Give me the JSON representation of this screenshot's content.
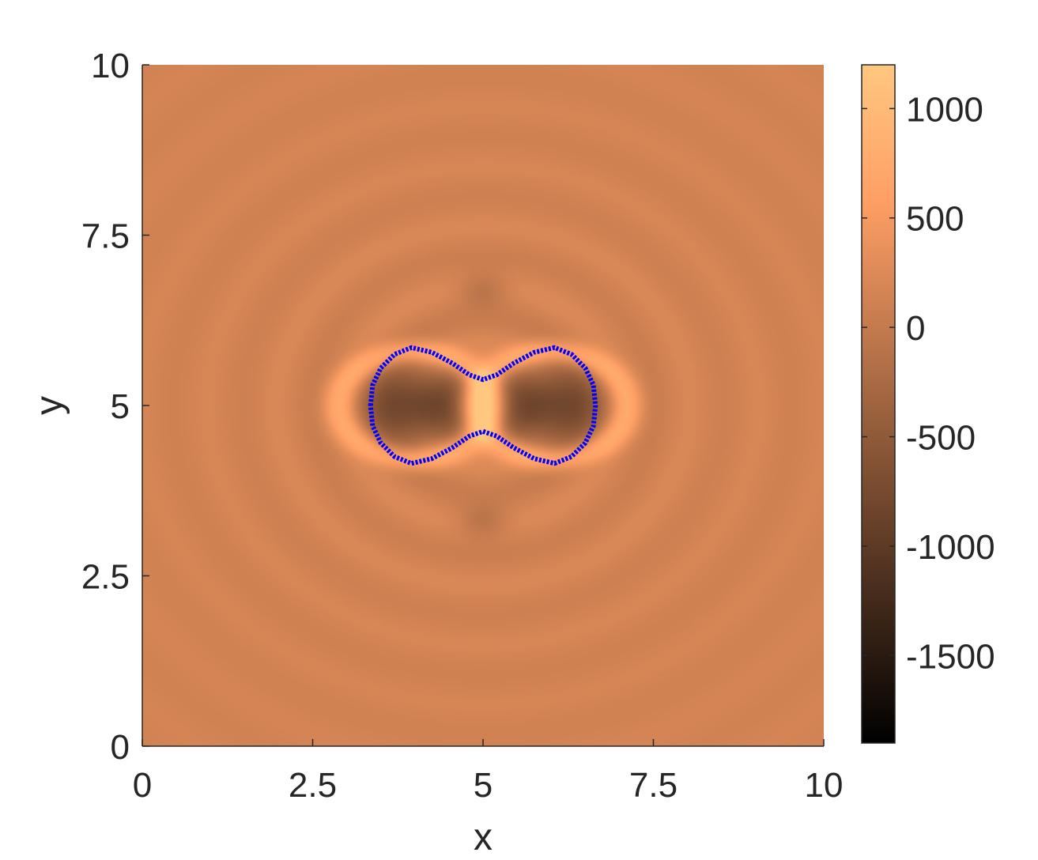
{
  "chart_data": {
    "type": "heatmap",
    "title": "",
    "xlabel": "x",
    "ylabel": "y",
    "xlim": [
      0,
      10
    ],
    "ylim": [
      0,
      10
    ],
    "x_ticks": [
      0,
      2.5,
      5,
      7.5,
      10
    ],
    "y_ticks": [
      0,
      2.5,
      5,
      7.5,
      10
    ],
    "x_tick_labels": [
      "0",
      "2.5",
      "5",
      "7.5",
      "10"
    ],
    "y_tick_labels": [
      "0",
      "2.5",
      "5",
      "7.5",
      "10"
    ],
    "grid": false,
    "colormap": "copper",
    "colorbar": {
      "range": [
        -1900,
        1200
      ],
      "ticks": [
        1000,
        500,
        0,
        -500,
        -1000,
        -1500
      ],
      "tick_labels": [
        "1000",
        "500",
        "0",
        "-500",
        "-1000",
        "-1500"
      ],
      "placement": "right"
    },
    "field": {
      "description_free_params": {
        "centers": [
          [
            4,
            5
          ],
          [
            6,
            5
          ]
        ],
        "background_value": 150
      }
    },
    "contour": {
      "color": "#0000ff",
      "points": [
        [
          3.35,
          5.0
        ],
        [
          3.38,
          5.3
        ],
        [
          3.5,
          5.55
        ],
        [
          3.7,
          5.75
        ],
        [
          3.95,
          5.85
        ],
        [
          4.25,
          5.78
        ],
        [
          4.55,
          5.62
        ],
        [
          4.8,
          5.45
        ],
        [
          5.0,
          5.38
        ],
        [
          5.2,
          5.45
        ],
        [
          5.45,
          5.62
        ],
        [
          5.75,
          5.78
        ],
        [
          6.05,
          5.85
        ],
        [
          6.3,
          5.75
        ],
        [
          6.5,
          5.55
        ],
        [
          6.62,
          5.3
        ],
        [
          6.65,
          5.0
        ],
        [
          6.62,
          4.7
        ],
        [
          6.5,
          4.45
        ],
        [
          6.3,
          4.25
        ],
        [
          6.05,
          4.15
        ],
        [
          5.75,
          4.22
        ],
        [
          5.45,
          4.38
        ],
        [
          5.2,
          4.55
        ],
        [
          5.0,
          4.62
        ],
        [
          4.8,
          4.55
        ],
        [
          4.55,
          4.38
        ],
        [
          4.25,
          4.22
        ],
        [
          3.95,
          4.15
        ],
        [
          3.7,
          4.25
        ],
        [
          3.5,
          4.45
        ],
        [
          3.38,
          4.7
        ]
      ]
    }
  },
  "colors": {
    "axis": "#262626",
    "contour": "#0000ff"
  }
}
